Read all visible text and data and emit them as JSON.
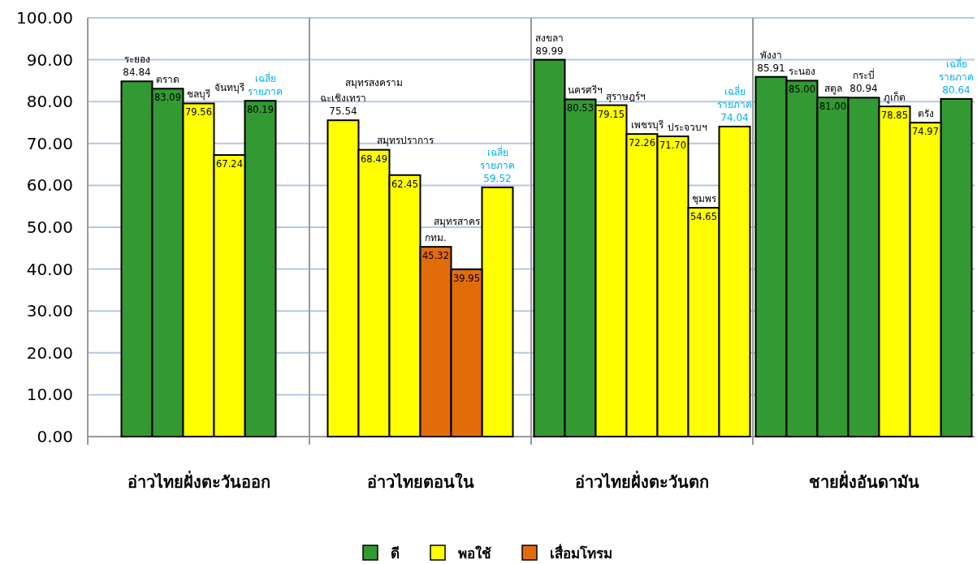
{
  "chart_data": [
    {
      "type": "bar",
      "stacked": true,
      "xlabel": "อ่าวไทยฝั่งตะวันออก",
      "categories": [
        "ระยอง",
        "ตราด",
        "ชลบุรี",
        "จันทบุรี",
        "เฉลี่ย รายภาค"
      ],
      "series": [
        {
          "name": "ดี",
          "color": "#339933",
          "values": [
            84.84,
            83.09,
            null,
            null,
            80.19
          ],
          "value_labels": [
            "84.84",
            "83.09",
            null,
            null,
            "80.19"
          ]
        },
        {
          "name": "พอใช้",
          "color": "#ffff00",
          "values": [
            null,
            null,
            79.56,
            67.24,
            null
          ],
          "value_labels": [
            null,
            null,
            "79.56",
            "67.24",
            null
          ]
        },
        {
          "name": "เสื่อมโทรม",
          "color": "#e36c0a",
          "values": [
            null,
            null,
            null,
            null,
            null
          ],
          "value_labels": [
            null,
            null,
            null,
            null,
            null
          ]
        }
      ],
      "ylim": [
        0,
        100
      ],
      "yticks": [
        {
          "value": 0,
          "label": "0.00"
        },
        {
          "value": 10,
          "label": "10.00"
        },
        {
          "value": 20,
          "label": "20.00"
        },
        {
          "value": 30,
          "label": "30.00"
        },
        {
          "value": 40,
          "label": "40.00"
        },
        {
          "value": 50,
          "label": "50.00"
        },
        {
          "value": 60,
          "label": "60.00"
        },
        {
          "value": 70,
          "label": "70.00"
        },
        {
          "value": 80,
          "label": "80.00"
        },
        {
          "value": 90,
          "label": "90.00"
        },
        {
          "value": 100,
          "label": "100.00"
        }
      ],
      "grid": "y",
      "legend": "bottom"
    },
    {
      "type": "bar",
      "stacked": true,
      "xlabel": "อ่าวไทยตอนใน",
      "categories": [
        "ฉะเชิงเทรา",
        "สมุทรสงคราม",
        "สมุทรปราการ",
        "กทม.",
        "สมุทรสาคร",
        "เฉลี่ย รายภาค"
      ],
      "series": [
        {
          "color": "#ffff00",
          "values": [
            75.54,
            68.49,
            62.45,
            null,
            null,
            59.52
          ],
          "value_labels": [
            "75.54",
            "68.49",
            "62.45",
            null,
            null,
            "59.52"
          ]
        },
        {
          "color": "#e36c0a",
          "values": [
            null,
            null,
            null,
            45.32,
            39.95,
            null
          ],
          "value_labels": [
            null,
            null,
            null,
            "45.32",
            "39.95",
            null
          ]
        }
      ],
      "ylim": [
        0,
        100
      ],
      "grid": "y",
      "tick_labels": "x"
    },
    {
      "type": "bar",
      "stacked": true,
      "xlabel": "อ่าวไทยฝั่งตะวันตก",
      "categories": [
        "สงขลา",
        "นครศรีฯ",
        "สุราษฎร์ฯ",
        "เพชรบุรี",
        "ประจวบฯ",
        "ชุมพร",
        "เฉลี่ย รายภาค"
      ],
      "series": [
        {
          "color": "#339933",
          "values": [
            89.99,
            80.53,
            null,
            null,
            null,
            null,
            null
          ],
          "value_labels": [
            "89.99",
            "80.53",
            null,
            null,
            null,
            null,
            null
          ]
        },
        {
          "color": "#ffff00",
          "values": [
            null,
            null,
            79.15,
            72.26,
            71.7,
            54.65,
            74.04
          ],
          "value_labels": [
            null,
            null,
            "79.15",
            "72.26",
            "71.70",
            "54.65",
            "74.04"
          ]
        }
      ],
      "ylim": [
        0,
        100
      ],
      "grid": "y",
      "tick_labels": "x"
    },
    {
      "type": "bar",
      "stacked": true,
      "xlabel": "ชายฝั่งอันดามัน",
      "categories": [
        "พังงา",
        "ระนอง",
        "สตูล",
        "กระบี่",
        "ภูเก็ต",
        "ตรัง",
        "เฉลี่ย รายภาค"
      ],
      "series": [
        {
          "color": "#339933",
          "values": [
            85.91,
            85.0,
            81.0,
            80.94,
            null,
            null,
            80.64
          ],
          "value_labels": [
            "85.91",
            "85.00",
            "81.00",
            "80.94",
            null,
            null,
            "80.64"
          ]
        },
        {
          "color": "#ffff00",
          "values": [
            null,
            null,
            null,
            null,
            78.85,
            74.97,
            null
          ],
          "value_labels": [
            null,
            null,
            null,
            null,
            "78.85",
            "74.97",
            null
          ]
        }
      ],
      "ylim": [
        0,
        100
      ],
      "grid": "y",
      "tick_labels": "x"
    }
  ]
}
